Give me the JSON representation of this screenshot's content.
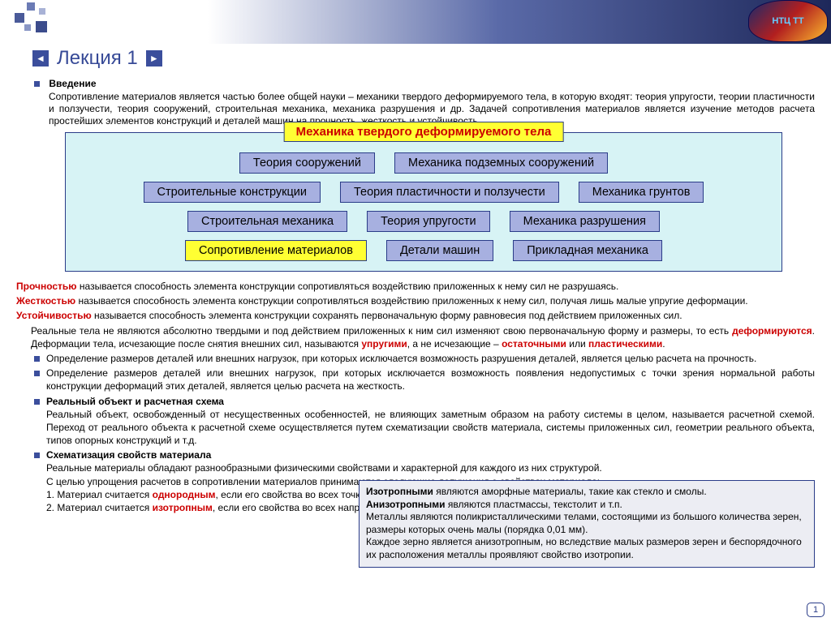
{
  "logo_text": "НТЦ ТТ",
  "nav": {
    "prev_icon": "◄",
    "next_icon": "►"
  },
  "title": "Лекция 1",
  "intro": {
    "heading": "Введение",
    "para": "Сопротивление материалов является частью более общей науки – механики твердого деформируемого тела, в которую входят: теория упругости, теории пластичности и ползучести, теория сооружений, строительная механика, механика разрушения и др. Задачей сопротивления материалов является изучение методов расчета простейших элементов конструкций и деталей машин на прочность, жесткость и устойчивость."
  },
  "diagram": {
    "title": "Механика твердого деформируемого тела",
    "title_bg": "#ffff33",
    "title_color": "#cc0000",
    "container_bg": "#d7f3f5",
    "box_bg": "#a7b0e0",
    "box_bg_highlight": "#ffff33",
    "border_color": "#2a3c88",
    "rows": [
      [
        {
          "label": "Теория сооружений",
          "highlight": false
        },
        {
          "label": "Механика подземных сооружений",
          "highlight": false
        }
      ],
      [
        {
          "label": "Строительные конструкции",
          "highlight": false
        },
        {
          "label": "Теория пластичности и ползучести",
          "highlight": false
        },
        {
          "label": "Механика грунтов",
          "highlight": false
        }
      ],
      [
        {
          "label": "Строительная механика",
          "highlight": false
        },
        {
          "label": "Теория упругости",
          "highlight": false
        },
        {
          "label": "Механика разрушения",
          "highlight": false
        }
      ],
      [
        {
          "label": "Сопротивление материалов",
          "highlight": true
        },
        {
          "label": "Детали машин",
          "highlight": false
        },
        {
          "label": "Прикладная механика",
          "highlight": false
        }
      ]
    ]
  },
  "definitions": {
    "d1_term": "Прочностью",
    "d1_rest": " называется способность элемента конструкции сопротивляться воздействию приложенных к нему сил не разрушаясь.",
    "d2_term": "Жесткостью",
    "d2_rest": " называется способность элемента конструкции сопротивляться воздействию приложенных к нему сил, получая лишь малые упругие деформации.",
    "d3_term": "Устойчивостью",
    "d3_rest": " называется способность элемента конструкции сохранять первоначальную форму равновесия под действием приложенных сил.",
    "d4_a": "Реальные тела не являются абсолютно твердыми и под действием приложенных к ним сил изменяют свою первоначальную форму и размеры, то есть ",
    "d4_b": "деформируются",
    "d4_c": ". Деформации тела, исчезающие после снятия внешних сил, называются ",
    "d4_d": "упругими",
    "d4_e": ", а не исчезающие – ",
    "d4_f": "остаточными",
    "d4_g": " или ",
    "d4_h": "пластическими",
    "d4_i": "."
  },
  "bullets": {
    "b1": "Определение размеров деталей или внешних нагрузок, при которых исключается возможность разрушения деталей, является целью расчета на прочность.",
    "b2": "Определение размеров деталей или внешних нагрузок, при которых исключается возможность появления недопустимых с точки зрения нормальной работы конструкции деформаций этих деталей, является целью расчета на жесткость.",
    "b3_head": "Реальный объект и расчетная схема",
    "b3_body": "Реальный объект, освобожденный от несущественных особенностей, не влияющих заметным образом на работу системы в целом, называется расчетной схемой. Переход от реального объекта к расчетной схеме осуществляется путем схематизации свойств материала, системы приложенных сил, геометрии реального объекта, типов опорных конструкций и т.д.",
    "b4_head": "Схематизация свойств материала",
    "b4_l1": "Реальные материалы обладают разнообразными физическими свойствами и характерной для каждого из них структурой.",
    "b4_l2": "С целью упрощения расчетов в сопротивлении материалов принимаются следующие допущения о свойствах материала:",
    "b4_l3a": "1. Материал считается ",
    "b4_l3b": "однородным",
    "b4_l3c": ", если его свойства во всех точках одинаковы.",
    "b4_l4a": "2. Материал считается ",
    "b4_l4b": "изотропным",
    "b4_l4c": ", если его свойства во всех направлениях одинаковы."
  },
  "callout": {
    "l1_a": "Изотропными",
    "l1_b": " являются аморфные материалы, такие как стекло и смолы.",
    "l2_a": "Анизотропными",
    "l2_b": " являются пластмассы, текстолит и т.п.",
    "l3": "Металлы являются поликристаллическими телами, состоящими из большого количества зерен, размеры которых очень малы (порядка 0,01 мм).",
    "l4": "Каждое зерно является анизотропным, но вследствие малых размеров зерен и беспорядочного их расположения металлы проявляют свойство изотропии."
  },
  "page_number": "1",
  "colors": {
    "accent": "#3b4e9c",
    "term_red": "#cc0000"
  }
}
